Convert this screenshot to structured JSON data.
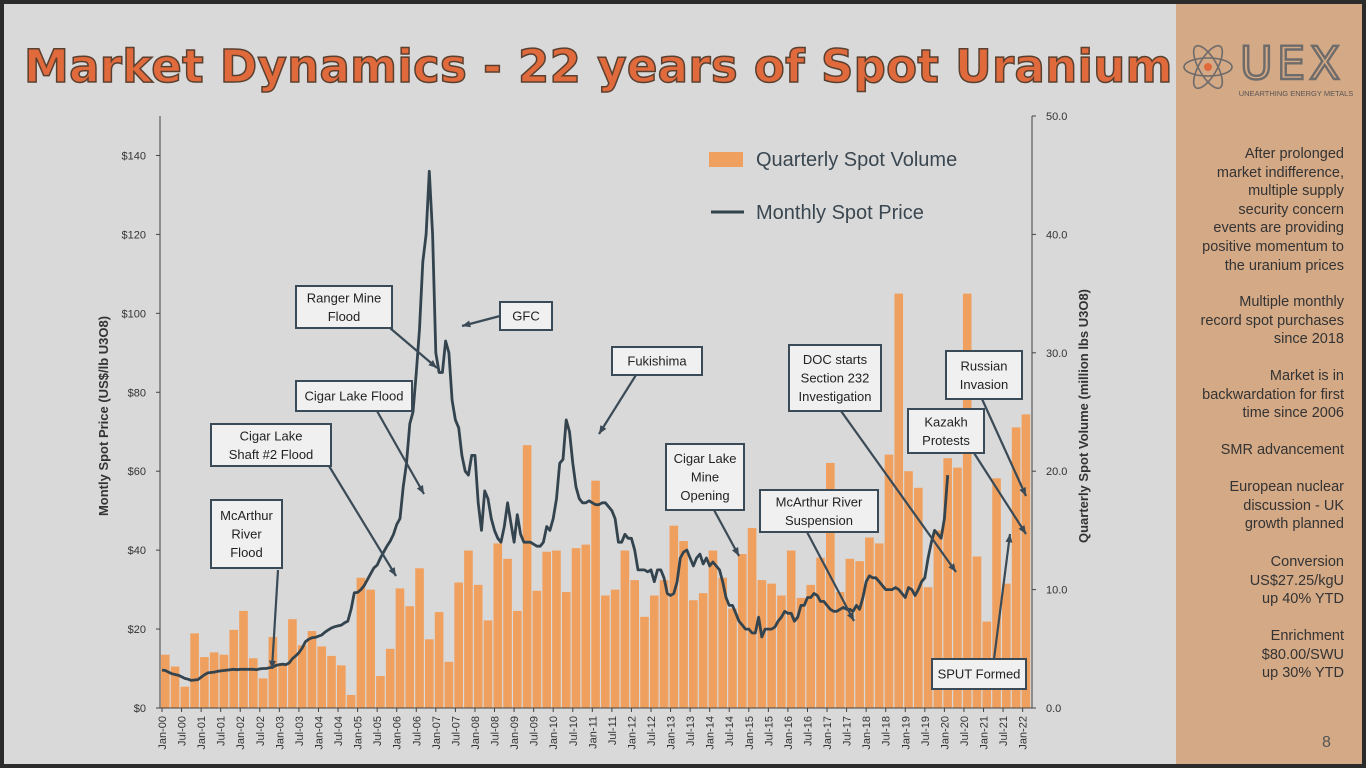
{
  "title": "Market Dynamics - 22 years of Spot Uranium",
  "logo": {
    "text": "UEX",
    "tagline": "UNEARTHING ENERGY METALS"
  },
  "page_number": "8",
  "sidebar": {
    "paragraphs": [
      "After prolonged\nmarket indifference,\nmultiple supply\nsecurity concern\nevents are providing\npositive momentum to\nthe uranium prices",
      "Multiple monthly\nrecord spot purchases\nsince  2018",
      "Market is in\nbackwardation for first\ntime since 2006",
      "SMR advancement",
      "European nuclear\ndiscussion - UK\ngrowth planned",
      "Conversion\nUS$27.25/kgU\nup 40% YTD",
      "Enrichment\n$80.00/SWU\nup 30% YTD"
    ]
  },
  "colors": {
    "bar": "#f0a05e",
    "line": "#34444f",
    "title": "#e06a3c",
    "sidebar": "#d4a986",
    "annotation_border": "#3a4a56"
  },
  "chart_data": {
    "type": "bar",
    "ylabel": "Montly Spot Price (US$/lb U3O8)",
    "y2label": "Quarterly Spot Volume (million lbs U3O8)",
    "ylim": [
      0,
      150
    ],
    "y2lim": [
      0,
      50
    ],
    "y_ticks": [
      "$0",
      "$20",
      "$40",
      "$60",
      "$80",
      "$100",
      "$120",
      "$140"
    ],
    "y2_ticks": [
      "0.0",
      "10.0",
      "20.0",
      "30.0",
      "40.0",
      "50.0"
    ],
    "x_tick_labels": [
      "Jan-00",
      "Jul-00",
      "Jan-01",
      "Jul-01",
      "Jan-02",
      "Jul-02",
      "Jan-03",
      "Jul-03",
      "Jan-04",
      "Jul-04",
      "Jan-05",
      "Jul-05",
      "Jan-06",
      "Jul-06",
      "Jan-07",
      "Jul-07",
      "Jan-08",
      "Jul-08",
      "Jan-09",
      "Jul-09",
      "Jan-10",
      "Jul-10",
      "Jan-11",
      "Jul-11",
      "Jan-12",
      "Jul-12",
      "Jan-13",
      "Jul-13",
      "Jan-14",
      "Jul-14",
      "Jan-15",
      "Jul-15",
      "Jan-16",
      "Jul-16",
      "Jan-17",
      "Jul-17",
      "Jan-18",
      "Jul-18",
      "Jan-19",
      "Jul-19",
      "Jan-20",
      "Jul-20",
      "Jan-21",
      "Jul-21",
      "Jan-22"
    ],
    "legend": [
      "Quarterly Spot Volume",
      "Monthly Spot Price"
    ],
    "legend_position": "top-right",
    "series": [
      {
        "name": "Quarterly Spot Volume",
        "type": "bar",
        "axis": "right",
        "start": "2000-Q1",
        "values": [
          4.5,
          3.5,
          1.8,
          6.3,
          4.3,
          4.7,
          4.5,
          6.6,
          8.2,
          4.2,
          2.5,
          6.0,
          3.7,
          7.5,
          5.3,
          6.5,
          5.2,
          4.4,
          3.6,
          1.1,
          11.0,
          10.0,
          2.7,
          5.0,
          10.1,
          8.6,
          11.8,
          5.8,
          8.1,
          3.9,
          10.6,
          13.3,
          10.4,
          7.4,
          13.9,
          12.6,
          8.2,
          22.2,
          9.9,
          13.2,
          13.3,
          9.8,
          13.5,
          13.8,
          19.2,
          9.5,
          10.0,
          13.3,
          10.8,
          7.7,
          9.5,
          10.8,
          15.4,
          14.1,
          9.1,
          9.7,
          13.3,
          11.0,
          8.4,
          13.0,
          15.2,
          10.8,
          10.5,
          9.5,
          13.3,
          9.3,
          10.4,
          12.7,
          20.7,
          9.8,
          12.6,
          12.4,
          14.4,
          13.9,
          21.4,
          35.0,
          20.0,
          18.6,
          10.2,
          15.0,
          21.1,
          20.3,
          35.0,
          12.8,
          7.3,
          19.4,
          10.5,
          23.7,
          24.8
        ]
      },
      {
        "name": "Monthly Spot Price",
        "type": "line",
        "axis": "left",
        "start": "2000-01",
        "values": [
          9.6,
          9.5,
          9.1,
          8.7,
          8.5,
          8.3,
          7.9,
          7.5,
          7.3,
          7.0,
          7.1,
          7.2,
          7.8,
          8.4,
          8.9,
          9.0,
          9.1,
          9.3,
          9.4,
          9.5,
          9.6,
          9.7,
          9.8,
          9.7,
          9.8,
          9.8,
          9.8,
          9.8,
          9.8,
          9.7,
          9.9,
          10.0,
          10.0,
          10.2,
          10.4,
          10.8,
          11.0,
          11.1,
          11.0,
          11.4,
          12.5,
          13.2,
          14.0,
          15.2,
          16.8,
          17.4,
          17.8,
          17.9,
          18.2,
          18.5,
          19.2,
          19.8,
          20.3,
          20.6,
          20.8,
          21.0,
          21.6,
          22.0,
          25.0,
          29.2,
          29.3,
          30.0,
          31.0,
          32.5,
          34.0,
          35.5,
          36.2,
          38.0,
          39.5,
          41.0,
          42.3,
          44.0,
          46.5,
          48.0,
          56.0,
          62.0,
          72.0,
          75.0,
          85.0,
          96.0,
          113.0,
          120.0,
          136.0,
          120.0,
          90.0,
          85.0,
          85.0,
          93.0,
          90.0,
          78.0,
          73.0,
          71.0,
          64.0,
          60.0,
          59.0,
          64.0,
          64.0,
          52.0,
          45.0,
          55.0,
          53.0,
          48.0,
          45.0,
          43.0,
          42.0,
          46.0,
          52.0,
          47.0,
          42.0,
          49.0,
          44.0,
          42.0,
          42.0,
          42.0,
          41.5,
          41.0,
          41.0,
          42.0,
          46.0,
          45.0,
          48.0,
          53.0,
          62.0,
          63.0,
          73.0,
          70.0,
          62.0,
          56.0,
          53.0,
          52.0,
          52.0,
          52.5,
          52.0,
          51.5,
          51.5,
          52.0,
          52.0,
          51.0,
          50.0,
          48.0,
          42.0,
          42.0,
          44.0,
          43.0,
          43.0,
          40.0,
          35.0,
          35.0,
          35.0,
          34.5,
          35.0,
          32.0,
          35.0,
          35.0,
          33.0,
          29.0,
          28.5,
          29.0,
          32.0,
          38.0,
          39.5,
          40.0,
          38.0,
          36.0,
          38.0,
          39.0,
          36.5,
          38.0,
          36.0,
          37.0,
          36.0,
          35.0,
          32.0,
          28.0,
          26.0,
          26.0,
          24.0,
          22.0,
          21.0,
          20.0,
          20.0,
          19.0,
          19.0,
          23.0,
          18.0,
          20.0,
          20.0,
          20.0,
          20.5,
          22.0,
          23.0,
          24.5,
          24.0,
          24.0,
          22.0,
          23.0,
          26.0,
          26.0,
          28.0,
          28.0,
          29.0,
          28.5,
          27.0,
          27.0,
          26.0,
          25.0,
          24.5,
          24.5,
          25.0,
          25.5,
          25.0,
          25.0,
          24.5,
          26.0,
          25.0,
          28.0,
          32.0,
          33.5,
          33.0,
          33.0,
          32.0,
          31.0,
          30.0,
          30.0,
          30.0,
          30.5,
          30.0,
          29.0,
          28.0,
          30.5,
          30.0,
          28.5,
          30.0,
          32.0,
          33.0,
          38.0,
          42.0,
          45.0,
          44.0,
          43.0,
          48.0,
          59.0
        ]
      }
    ]
  },
  "annotations": [
    {
      "lines": [
        "McArthur",
        "River",
        "Flood"
      ]
    },
    {
      "lines": [
        "Cigar Lake",
        "Shaft #2 Flood"
      ]
    },
    {
      "lines": [
        "Cigar Lake Flood"
      ]
    },
    {
      "lines": [
        "Ranger Mine",
        "Flood"
      ]
    },
    {
      "lines": [
        "GFC"
      ]
    },
    {
      "lines": [
        "Fukishima"
      ]
    },
    {
      "lines": [
        "Cigar Lake",
        "Mine",
        "Opening"
      ]
    },
    {
      "lines": [
        "McArthur River",
        "Suspension"
      ]
    },
    {
      "lines": [
        "DOC starts",
        "Section 232",
        "Investigation"
      ]
    },
    {
      "lines": [
        "Kazakh",
        "Protests"
      ]
    },
    {
      "lines": [
        "Russian",
        "Invasion"
      ]
    },
    {
      "lines": [
        "SPUT Formed"
      ]
    }
  ]
}
